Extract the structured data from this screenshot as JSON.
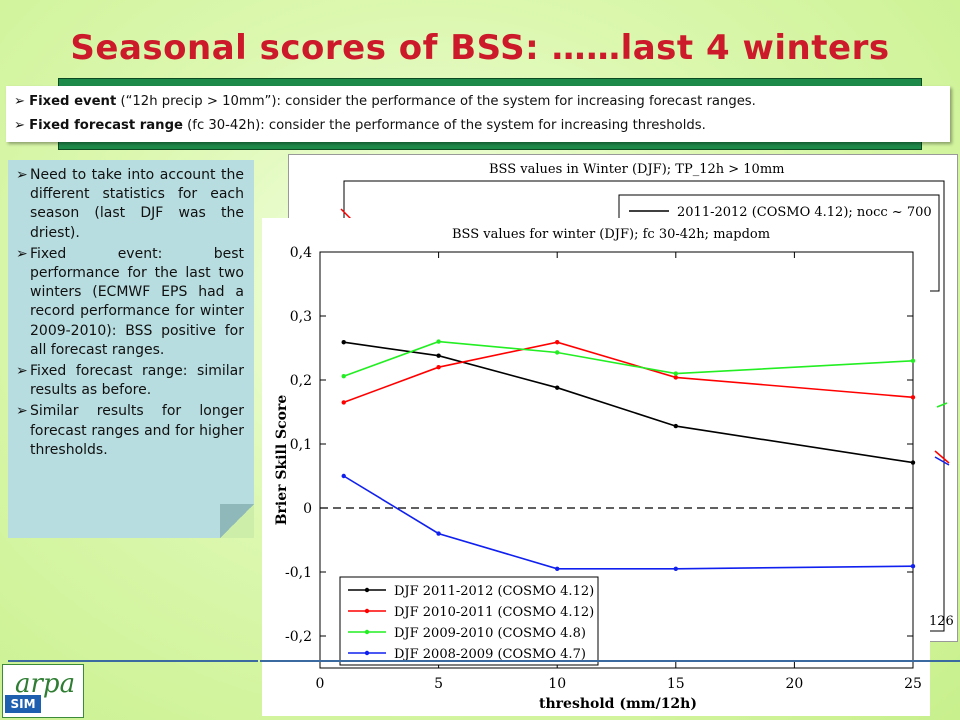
{
  "slide": {
    "title": "Seasonal scores of BSS: ……last 4 winters",
    "intro": [
      {
        "bold": "Fixed event",
        "rest": " (“12h precip > 10mm”): consider the performance of the system for increasing forecast ranges."
      },
      {
        "bold": "Fixed forecast range",
        "rest": " (fc 30-42h): consider the performance of the system for increasing thresholds."
      }
    ],
    "notes": [
      "Need to take into account the different statistics for each season (last DJF was the driest).",
      "Fixed event: best performance for the last two winters (ECMWF EPS had a record performance for winter 2009-2010): BSS positive for all forecast ranges.",
      "Fixed forecast range: similar results as before.",
      "Similar results for longer forecast ranges and for higher thresholds."
    ],
    "bullet_glyph": "➢",
    "logo_text": "arpa",
    "logo_sub": "SIM"
  },
  "chart_data": [
    {
      "type": "line",
      "title": "BSS values for winter (DJF); fc 30-42h; mapdom",
      "xlabel": "threshold (mm/12h)",
      "ylabel": "Brier Skill Score",
      "xlim": [
        0,
        25
      ],
      "ylim": [
        -0.25,
        0.4
      ],
      "xticks": [
        "0",
        "5",
        "10",
        "15",
        "20",
        "25"
      ],
      "yticks": [
        "0,4",
        "0,3",
        "0,2",
        "0,1",
        "0",
        "-0,1",
        "-0,2"
      ],
      "x": [
        1,
        5,
        10,
        15,
        25
      ],
      "series": [
        {
          "name": "DJF 2011-2012 (COSMO 4.12)",
          "color": "#000000",
          "values": [
            0.259,
            0.238,
            0.188,
            0.128,
            0.071
          ]
        },
        {
          "name": "DJF 2010-2011 (COSMO 4.12)",
          "color": "#ff0000",
          "values": [
            0.165,
            0.22,
            0.259,
            0.204,
            0.173
          ]
        },
        {
          "name": "DJF 2009-2010 (COSMO 4.8)",
          "color": "#22ee22",
          "values": [
            0.206,
            0.26,
            0.243,
            0.21,
            0.23
          ]
        },
        {
          "name": "DJF 2008-2009 (COSMO 4.7)",
          "color": "#1020ee",
          "values": [
            0.05,
            -0.04,
            -0.095,
            -0.095,
            -0.091
          ]
        }
      ],
      "legend": "bottom-left",
      "reference_line": 0
    },
    {
      "type": "line",
      "title": "BSS values in Winter (DJF); TP_12h > 10mm",
      "legend_entries": [
        "2011-2012 (COSMO 4.12); nocc ~ 700"
      ],
      "visible_ticks": [
        "126"
      ]
    }
  ]
}
